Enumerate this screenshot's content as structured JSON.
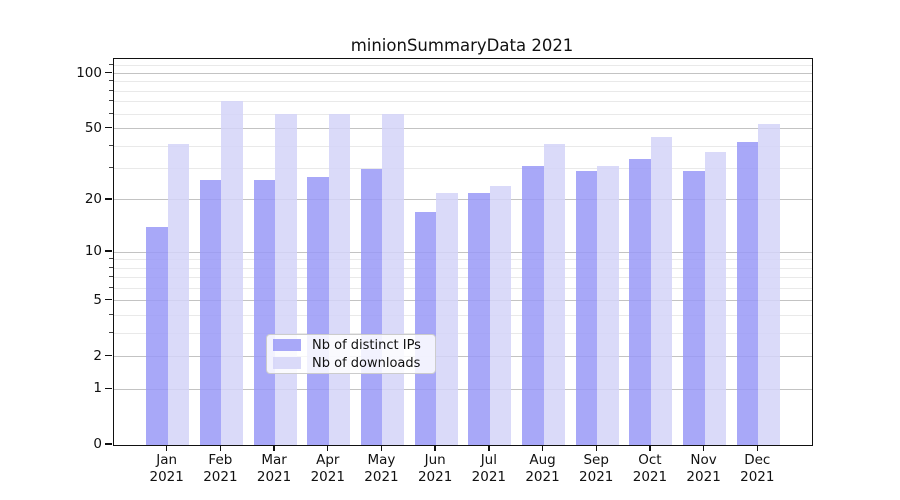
{
  "chart_data": {
    "type": "bar",
    "title": "minionSummaryData 2021",
    "categories": [
      "Jan 2021",
      "Feb 2021",
      "Mar 2021",
      "Apr 2021",
      "May 2021",
      "Jun 2021",
      "Jul 2021",
      "Aug 2021",
      "Sep 2021",
      "Oct 2021",
      "Nov 2021",
      "Dec 2021"
    ],
    "series": [
      {
        "name": "Nb of distinct IPs",
        "color": "rgba(153,153,247,0.85)",
        "solid_color": "#a8a8f5",
        "values": [
          14,
          26,
          26,
          27,
          30,
          17,
          22,
          31,
          29,
          34,
          29,
          42
        ]
      },
      {
        "name": "Nb of downloads",
        "color": "rgba(211,211,248,0.85)",
        "solid_color": "#d9d9f8",
        "values": [
          41,
          71,
          60,
          60,
          60,
          22,
          24,
          41,
          31,
          45,
          37,
          53
        ]
      }
    ],
    "xlabel": "",
    "ylabel": "",
    "yscale": "symlog-log1p",
    "ylim": [
      0,
      120
    ],
    "yticks_major": [
      0,
      1,
      2,
      5,
      10,
      20,
      50,
      100
    ],
    "yticks_minor": [
      3,
      4,
      6,
      7,
      8,
      9,
      30,
      40,
      60,
      70,
      80,
      90,
      110
    ],
    "grid": true,
    "legend_position": "lower center"
  },
  "colors": {
    "background": "#ffffff",
    "spine": "#111111",
    "grid_major": "#c3c3c3",
    "grid_minor": "#e9e9e9",
    "text": "#111111"
  }
}
